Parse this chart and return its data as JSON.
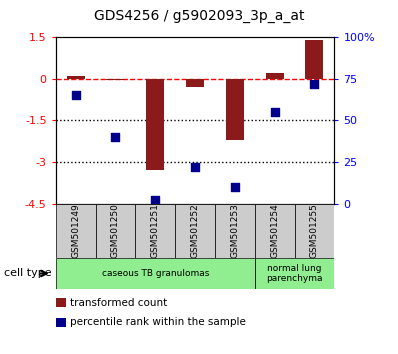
{
  "title": "GDS4256 / g5902093_3p_a_at",
  "samples": [
    "GSM501249",
    "GSM501250",
    "GSM501251",
    "GSM501252",
    "GSM501253",
    "GSM501254",
    "GSM501255"
  ],
  "transformed_count": [
    0.1,
    -0.05,
    -3.3,
    -0.3,
    -2.2,
    0.2,
    1.4
  ],
  "percentile_rank": [
    65,
    40,
    2,
    22,
    10,
    55,
    72
  ],
  "ylim_left": [
    -4.5,
    1.5
  ],
  "ylim_right": [
    0,
    100
  ],
  "yticks_left": [
    1.5,
    0,
    -1.5,
    -3,
    -4.5
  ],
  "yticks_right": [
    100,
    75,
    50,
    25,
    0
  ],
  "hlines": [
    0,
    -1.5,
    -3
  ],
  "hline_styles": [
    "dashed",
    "dotted",
    "dotted"
  ],
  "hline_colors": [
    "red",
    "black",
    "black"
  ],
  "bar_color": "#8B1A1A",
  "dot_color": "#00008B",
  "cell_type_label": "cell type",
  "bg_color": "#FFFFFF",
  "tick_area_color": "#CCCCCC",
  "green_color": "#90EE90",
  "legend_items": [
    {
      "label": "transformed count",
      "color": "#8B1A1A"
    },
    {
      "label": "percentile rank within the sample",
      "color": "#00008B"
    }
  ],
  "groups": [
    {
      "label": "caseous TB granulomas",
      "xstart": -0.5,
      "xend": 4.5
    },
    {
      "label": "normal lung\nparenchyma",
      "xstart": 4.5,
      "xend": 6.5
    }
  ]
}
